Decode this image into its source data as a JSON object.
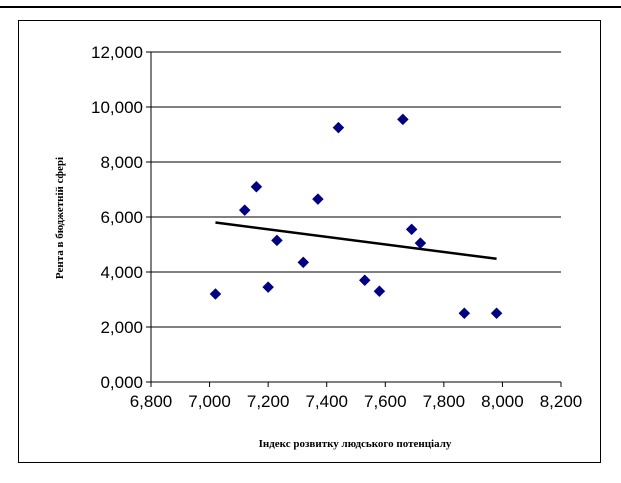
{
  "chart_data": {
    "type": "scatter",
    "xlabel": "Індекс розвитку людського потенціалу",
    "ylabel": "Рента в бюджетній сфері",
    "xlim": [
      6.8,
      8.2
    ],
    "ylim": [
      0,
      12
    ],
    "x_ticks": [
      "6,800",
      "7,000",
      "7,200",
      "7,400",
      "7,600",
      "7,800",
      "8,000",
      "8,200"
    ],
    "y_ticks": [
      "0,000",
      "2,000",
      "4,000",
      "6,000",
      "8,000",
      "10,000",
      "12,000"
    ],
    "grid": "horizontal",
    "marker": "diamond",
    "marker_color": "#000080",
    "points": [
      {
        "x": 7.02,
        "y": 3.2
      },
      {
        "x": 7.12,
        "y": 6.25
      },
      {
        "x": 7.16,
        "y": 7.1
      },
      {
        "x": 7.2,
        "y": 3.45
      },
      {
        "x": 7.23,
        "y": 5.15
      },
      {
        "x": 7.32,
        "y": 4.35
      },
      {
        "x": 7.37,
        "y": 6.65
      },
      {
        "x": 7.44,
        "y": 9.25
      },
      {
        "x": 7.53,
        "y": 3.7
      },
      {
        "x": 7.58,
        "y": 3.3
      },
      {
        "x": 7.66,
        "y": 9.55
      },
      {
        "x": 7.69,
        "y": 5.55
      },
      {
        "x": 7.72,
        "y": 5.05
      },
      {
        "x": 7.87,
        "y": 2.5
      },
      {
        "x": 7.98,
        "y": 2.5
      }
    ],
    "trendline": {
      "x": [
        7.02,
        7.98
      ],
      "y": [
        5.8,
        4.48
      ]
    }
  }
}
